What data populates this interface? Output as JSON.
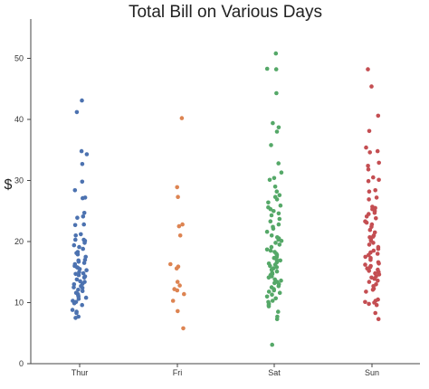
{
  "chart_data": {
    "type": "scatter",
    "subtype": "strip",
    "title": "Total Bill on Various Days",
    "xlabel": "",
    "ylabel": "$",
    "categories": [
      "Thur",
      "Fri",
      "Sat",
      "Sun"
    ],
    "ylim": [
      0,
      56
    ],
    "yticks": [
      "0",
      "10",
      "20",
      "30",
      "40",
      "50"
    ],
    "grid": false,
    "legend": "none",
    "series": [
      {
        "category": "Thur",
        "color": "#4c72b0",
        "values": [
          43.1,
          41.2,
          34.8,
          34.3,
          32.7,
          29.8,
          28.4,
          27.2,
          27.1,
          24.7,
          24.1,
          23.9,
          22.8,
          22.7,
          21.2,
          21.0,
          20.3,
          20.3,
          20.1,
          19.8,
          19.4,
          19.1,
          18.8,
          18.3,
          18.1,
          17.9,
          17.5,
          17.0,
          16.9,
          16.7,
          16.5,
          16.3,
          16.0,
          15.8,
          15.7,
          15.5,
          15.3,
          15.0,
          14.8,
          14.7,
          14.5,
          14.3,
          14.1,
          13.8,
          13.5,
          13.4,
          13.1,
          13.0,
          12.7,
          12.5,
          12.4,
          12.1,
          11.9,
          11.6,
          11.4,
          11.2,
          11.0,
          10.8,
          10.6,
          10.3,
          10.1,
          9.9,
          9.6,
          8.8,
          8.5,
          8.3,
          7.7,
          7.5
        ]
      },
      {
        "category": "Fri",
        "color": "#dd8452",
        "values": [
          40.2,
          28.9,
          27.3,
          22.8,
          22.5,
          21.0,
          16.3,
          15.9,
          15.6,
          13.4,
          12.8,
          12.2,
          12.0,
          11.4,
          10.3,
          8.6,
          5.8
        ]
      },
      {
        "category": "Sat",
        "color": "#55a868",
        "values": [
          50.8,
          48.3,
          48.2,
          44.3,
          39.4,
          38.7,
          38.0,
          35.8,
          32.8,
          31.3,
          30.4,
          30.1,
          29.0,
          28.2,
          27.6,
          27.3,
          26.9,
          26.4,
          25.9,
          25.6,
          25.3,
          25.0,
          24.6,
          24.3,
          23.7,
          23.3,
          22.8,
          22.4,
          22.1,
          21.6,
          21.0,
          20.7,
          20.5,
          20.3,
          20.1,
          19.8,
          19.5,
          19.1,
          18.7,
          18.5,
          18.3,
          18.0,
          17.8,
          17.5,
          17.3,
          17.1,
          16.9,
          16.6,
          16.4,
          16.2,
          16.0,
          15.8,
          15.6,
          15.4,
          15.1,
          14.9,
          14.7,
          14.5,
          14.3,
          14.1,
          13.8,
          13.6,
          13.4,
          13.2,
          13.0,
          12.7,
          12.5,
          12.2,
          12.0,
          11.8,
          11.6,
          11.3,
          11.0,
          10.7,
          10.3,
          10.1,
          9.8,
          9.6,
          9.4,
          8.5,
          7.7,
          7.3,
          3.1
        ]
      },
      {
        "category": "Sun",
        "color": "#c44e52",
        "values": [
          48.2,
          45.4,
          40.6,
          38.1,
          35.4,
          34.8,
          34.6,
          32.9,
          32.4,
          31.8,
          30.5,
          30.1,
          29.9,
          28.4,
          28.2,
          27.2,
          26.9,
          25.7,
          25.5,
          25.3,
          25.0,
          24.7,
          24.5,
          24.1,
          23.8,
          23.3,
          23.1,
          22.8,
          22.4,
          21.9,
          21.5,
          21.0,
          20.8,
          20.7,
          20.3,
          20.1,
          19.8,
          19.5,
          19.1,
          18.8,
          18.5,
          18.2,
          18.0,
          17.8,
          17.5,
          17.3,
          17.0,
          16.6,
          16.4,
          16.2,
          16.0,
          15.8,
          15.6,
          15.4,
          15.2,
          15.0,
          14.8,
          14.6,
          14.3,
          14.1,
          13.9,
          13.6,
          13.4,
          13.0,
          12.7,
          12.3,
          12.1,
          11.8,
          10.5,
          10.3,
          10.1,
          10.0,
          9.8,
          9.6,
          8.3,
          7.3
        ]
      }
    ]
  }
}
